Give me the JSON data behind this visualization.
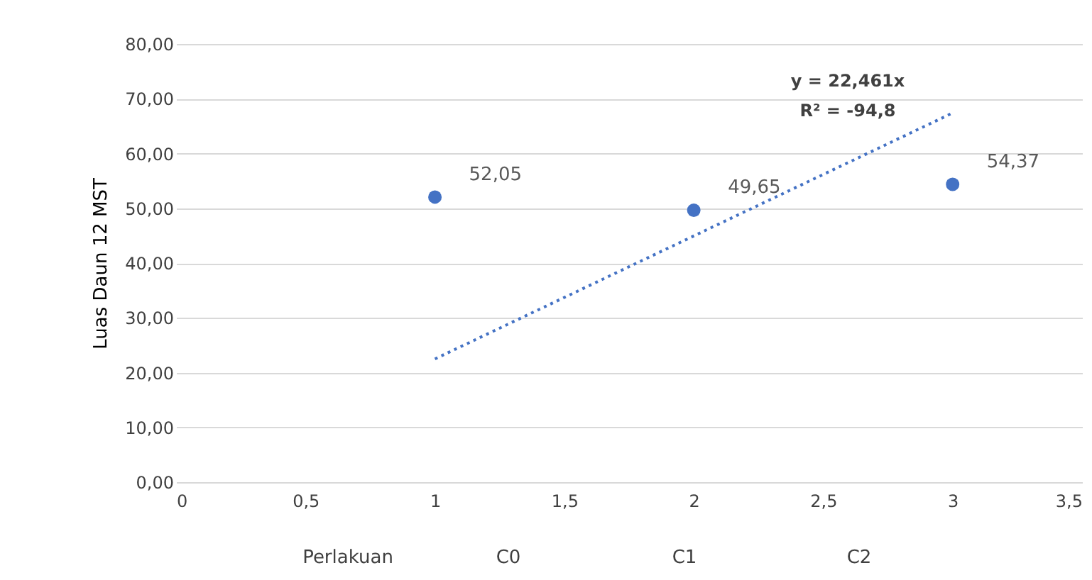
{
  "chart_data": {
    "type": "scatter",
    "xlabel": "Perlakuan",
    "ylabel": "Luas Daun 12 MST",
    "series": [
      {
        "color": "#4472c4",
        "x": [
          1,
          2,
          3
        ],
        "values": [
          52.05,
          49.65,
          54.37
        ],
        "value_labels": [
          "52,05",
          "49,65",
          "54,37"
        ],
        "marker": "circle"
      },
      {
        "type": "line",
        "color": "#4472c4",
        "x": [
          1,
          3
        ],
        "values": [
          22.5,
          67.4
        ],
        "line_style": "dotted",
        "marker": "none"
      }
    ],
    "annotations": [
      "y = 22,461x",
      "R² = -94,8",
      "C0",
      "C1",
      "C2"
    ],
    "xlim": [
      0,
      3.5
    ],
    "xticks": [
      0,
      {
        "value": 0.5,
        "label": "0,5"
      },
      1,
      {
        "value": 1.5,
        "label": "1,5"
      },
      2,
      {
        "value": 2.5,
        "label": "2,5"
      },
      3,
      {
        "value": 3.5,
        "label": "3,5"
      }
    ],
    "ylim": [
      0,
      80
    ],
    "yticks": [
      {
        "value": 0,
        "label": "0,00"
      },
      {
        "value": 10,
        "label": "10,00"
      },
      {
        "value": 20,
        "label": "20,00"
      },
      {
        "value": 30,
        "label": "30,00"
      },
      {
        "value": 40,
        "label": "40,00"
      },
      {
        "value": 50,
        "label": "50,00"
      },
      {
        "value": 60,
        "label": "60,00"
      },
      {
        "value": 70,
        "label": "70,00"
      },
      {
        "value": 80,
        "label": "80,00"
      }
    ],
    "grid": "y"
  }
}
